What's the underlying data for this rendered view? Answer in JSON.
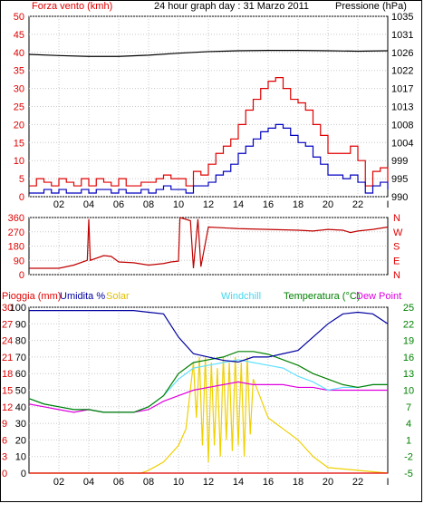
{
  "header": {
    "left": "Forza vento (kmh)",
    "center": "24 hour graph day : 31 Marzo 2011",
    "right": "Pressione (hPa)"
  },
  "panel3_labels": {
    "rain": "Pioggia (mm)",
    "humidity": "Umidita %",
    "solar": "Solar",
    "windchill": "Windchill",
    "temperature": "Temperatura (°C)",
    "dewpoint": "Dew Point"
  },
  "colors": {
    "wind_gust": "#e00000",
    "wind_avg": "#0000c0",
    "pressure": "#000000",
    "direction": "#c00000",
    "humidity": "#0000a0",
    "temperature": "#008000",
    "windchill": "#60e0ff",
    "dewpoint": "#e000e0",
    "solar": "#f0d000",
    "rain": "#e00000",
    "axis_left": "#e00000",
    "axis_right_green": "#008000",
    "axis_right_dir": "#e00000"
  },
  "chart_data": [
    {
      "type": "line",
      "name": "wind_and_pressure",
      "x_ticks": [
        "02",
        "04",
        "06",
        "08",
        "10",
        "12",
        "14",
        "16",
        "18",
        "20",
        "22",
        "I"
      ],
      "left_axis": {
        "label": "Forza vento (kmh)",
        "ticks": [
          0,
          5,
          10,
          15,
          20,
          25,
          30,
          35,
          40,
          45,
          50
        ],
        "ylim": [
          0,
          50
        ]
      },
      "right_axis": {
        "label": "Pressione (hPa)",
        "ticks": [
          990,
          995,
          999,
          1004,
          1008,
          1013,
          1017,
          1022,
          1026,
          1031,
          1035
        ],
        "ylim": [
          990,
          1035
        ]
      },
      "series": [
        {
          "name": "wind_gust",
          "axis": "left",
          "x": [
            0,
            0.5,
            1,
            1.5,
            2,
            2.5,
            3,
            3.5,
            4,
            4.5,
            5,
            5.5,
            6,
            6.5,
            7,
            7.5,
            8,
            8.5,
            9,
            9.5,
            10,
            10.5,
            11,
            11.5,
            12,
            12.5,
            13,
            13.5,
            14,
            14.5,
            15,
            15.5,
            16,
            16.5,
            17,
            17.5,
            18,
            18.5,
            19,
            19.5,
            20,
            20.5,
            21,
            21.5,
            22,
            22.5,
            23,
            23.5,
            24
          ],
          "values": [
            3,
            5,
            4,
            3,
            5,
            4,
            3,
            5,
            3,
            5,
            4,
            3,
            5,
            3,
            3,
            4,
            4,
            5,
            6,
            5,
            5,
            3,
            7,
            6,
            9,
            12,
            14,
            16,
            20,
            24,
            27,
            30,
            32,
            33,
            30,
            27,
            26,
            24,
            20,
            17,
            12,
            12,
            12,
            14,
            10,
            3,
            7,
            8,
            4
          ]
        },
        {
          "name": "wind_avg",
          "axis": "left",
          "x": [
            0,
            0.5,
            1,
            1.5,
            2,
            2.5,
            3,
            3.5,
            4,
            4.5,
            5,
            5.5,
            6,
            6.5,
            7,
            7.5,
            8,
            8.5,
            9,
            9.5,
            10,
            10.5,
            11,
            11.5,
            12,
            12.5,
            13,
            13.5,
            14,
            14.5,
            15,
            15.5,
            16,
            16.5,
            17,
            17.5,
            18,
            18.5,
            19,
            19.5,
            20,
            20.5,
            21,
            21.5,
            22,
            22.5,
            23,
            23.5,
            24
          ],
          "values": [
            1,
            1,
            2,
            1,
            2,
            1,
            1,
            2,
            1,
            2,
            2,
            1,
            2,
            1,
            1,
            2,
            1,
            2,
            3,
            2,
            2,
            1,
            3,
            3,
            4,
            6,
            7,
            9,
            12,
            14,
            16,
            18,
            19,
            20,
            19,
            17,
            15,
            14,
            11,
            9,
            6,
            6,
            5,
            6,
            4,
            1,
            3,
            4,
            2
          ]
        },
        {
          "name": "pressure",
          "axis": "right",
          "x": [
            0,
            2,
            4,
            6,
            8,
            10,
            12,
            14,
            16,
            18,
            20,
            22,
            24
          ],
          "values": [
            1025.5,
            1025.2,
            1025,
            1025,
            1025.3,
            1025.8,
            1026.2,
            1026.4,
            1026.5,
            1026.5,
            1026.4,
            1026.3,
            1026.4
          ]
        }
      ]
    },
    {
      "type": "line",
      "name": "wind_direction",
      "left_axis": {
        "ticks": [
          0,
          90,
          180,
          270,
          360
        ],
        "ylim": [
          0,
          360
        ]
      },
      "right_axis": {
        "ticks": [
          "N",
          "W",
          "S",
          "E",
          "N"
        ]
      },
      "series": [
        {
          "name": "direction",
          "x": [
            0,
            1,
            2,
            3,
            3.9,
            4,
            4.1,
            5,
            5.5,
            6,
            7,
            8,
            9,
            9.5,
            10,
            10.1,
            10.8,
            11,
            11.3,
            11.5,
            12,
            14,
            16,
            18,
            19,
            20,
            21,
            21.5,
            22,
            23,
            24
          ],
          "values": [
            40,
            40,
            40,
            60,
            90,
            350,
            90,
            120,
            115,
            80,
            75,
            60,
            70,
            80,
            85,
            360,
            340,
            40,
            350,
            50,
            300,
            290,
            285,
            280,
            275,
            285,
            280,
            265,
            275,
            285,
            300
          ]
        }
      ]
    },
    {
      "type": "line",
      "name": "rain_humidity_temperature",
      "left_axis_rain": {
        "label": "Pioggia (mm)",
        "ticks": [
          0,
          3,
          6,
          9,
          12,
          15,
          18,
          21,
          24,
          27,
          30
        ],
        "ylim": [
          0,
          30
        ]
      },
      "left_axis_humidity": {
        "label": "Umidita %",
        "ticks": [
          0,
          10,
          20,
          30,
          40,
          50,
          60,
          70,
          80,
          90,
          100
        ],
        "ylim": [
          0,
          100
        ]
      },
      "right_axis_temperature": {
        "label": "Temperatura (°C)",
        "ticks": [
          -5,
          -2,
          1,
          4,
          7,
          10,
          13,
          16,
          19,
          22,
          25
        ],
        "ylim": [
          -5,
          25
        ]
      },
      "series": [
        {
          "name": "humidity",
          "axis": "humidity",
          "x": [
            0,
            1,
            2,
            3,
            4,
            5,
            6,
            7,
            8,
            9,
            10,
            11,
            12,
            13,
            14,
            15,
            16,
            17,
            18,
            19,
            20,
            21,
            22,
            23,
            24
          ],
          "values": [
            98,
            98,
            98,
            98,
            98,
            98,
            98,
            98,
            97,
            96,
            82,
            72,
            70,
            68,
            67,
            70,
            70,
            72,
            74,
            82,
            90,
            96,
            97,
            96,
            90
          ]
        },
        {
          "name": "temperature",
          "axis": "temperature",
          "x": [
            0,
            1,
            2,
            3,
            4,
            5,
            6,
            7,
            8,
            9,
            10,
            11,
            12,
            13,
            14,
            15,
            16,
            17,
            18,
            19,
            20,
            21,
            22,
            23,
            24
          ],
          "values": [
            8.5,
            7.5,
            7,
            6.5,
            6.5,
            6,
            6,
            6,
            7,
            9,
            13,
            15,
            15.5,
            16,
            17,
            17,
            16.5,
            15.5,
            14.5,
            13,
            12,
            11,
            10.5,
            11,
            11
          ]
        },
        {
          "name": "windchill",
          "axis": "temperature",
          "x": [
            0,
            1,
            2,
            3,
            4,
            5,
            6,
            7,
            8,
            9,
            10,
            11,
            12,
            13,
            14,
            15,
            16,
            17,
            18,
            19,
            20,
            21,
            22,
            23,
            24
          ],
          "values": [
            8.5,
            7.5,
            7,
            6.5,
            6.5,
            6,
            6,
            6,
            7,
            9,
            12,
            14,
            14.5,
            15,
            15.5,
            15,
            14.5,
            14,
            12.5,
            11.5,
            10,
            10.5,
            10.5,
            11,
            11
          ]
        },
        {
          "name": "dewpoint",
          "axis": "temperature",
          "x": [
            0,
            1,
            2,
            3,
            4,
            5,
            6,
            7,
            8,
            9,
            10,
            11,
            12,
            13,
            14,
            15,
            16,
            17,
            18,
            19,
            20,
            21,
            22,
            23,
            24
          ],
          "values": [
            7.5,
            7,
            6.5,
            6,
            6.5,
            6,
            6,
            6,
            6.5,
            8,
            9,
            10,
            10.5,
            11,
            11.5,
            11,
            11,
            11,
            10.5,
            10.5,
            10,
            10,
            10,
            10,
            10
          ]
        },
        {
          "name": "solar",
          "axis": "temperature",
          "x": [
            0,
            7.5,
            8,
            9,
            10,
            10.5,
            11,
            11.2,
            11.4,
            11.6,
            11.8,
            12,
            12.2,
            12.4,
            12.6,
            12.8,
            13,
            13.2,
            13.4,
            13.6,
            13.8,
            14,
            14.2,
            14.4,
            14.6,
            14.8,
            15,
            16,
            17,
            18,
            19,
            20,
            24
          ],
          "values": [
            -5,
            -5,
            -4.5,
            -3,
            0,
            3,
            15,
            5,
            16,
            0,
            16,
            -3,
            15,
            0,
            14,
            -2,
            16,
            1,
            15,
            -1,
            16,
            0,
            15,
            -2,
            16,
            2,
            12,
            5,
            3,
            1,
            -2,
            -4,
            -5
          ]
        },
        {
          "name": "rain",
          "axis": "rain",
          "x": [
            0,
            24
          ],
          "values": [
            0,
            0
          ]
        }
      ]
    }
  ]
}
